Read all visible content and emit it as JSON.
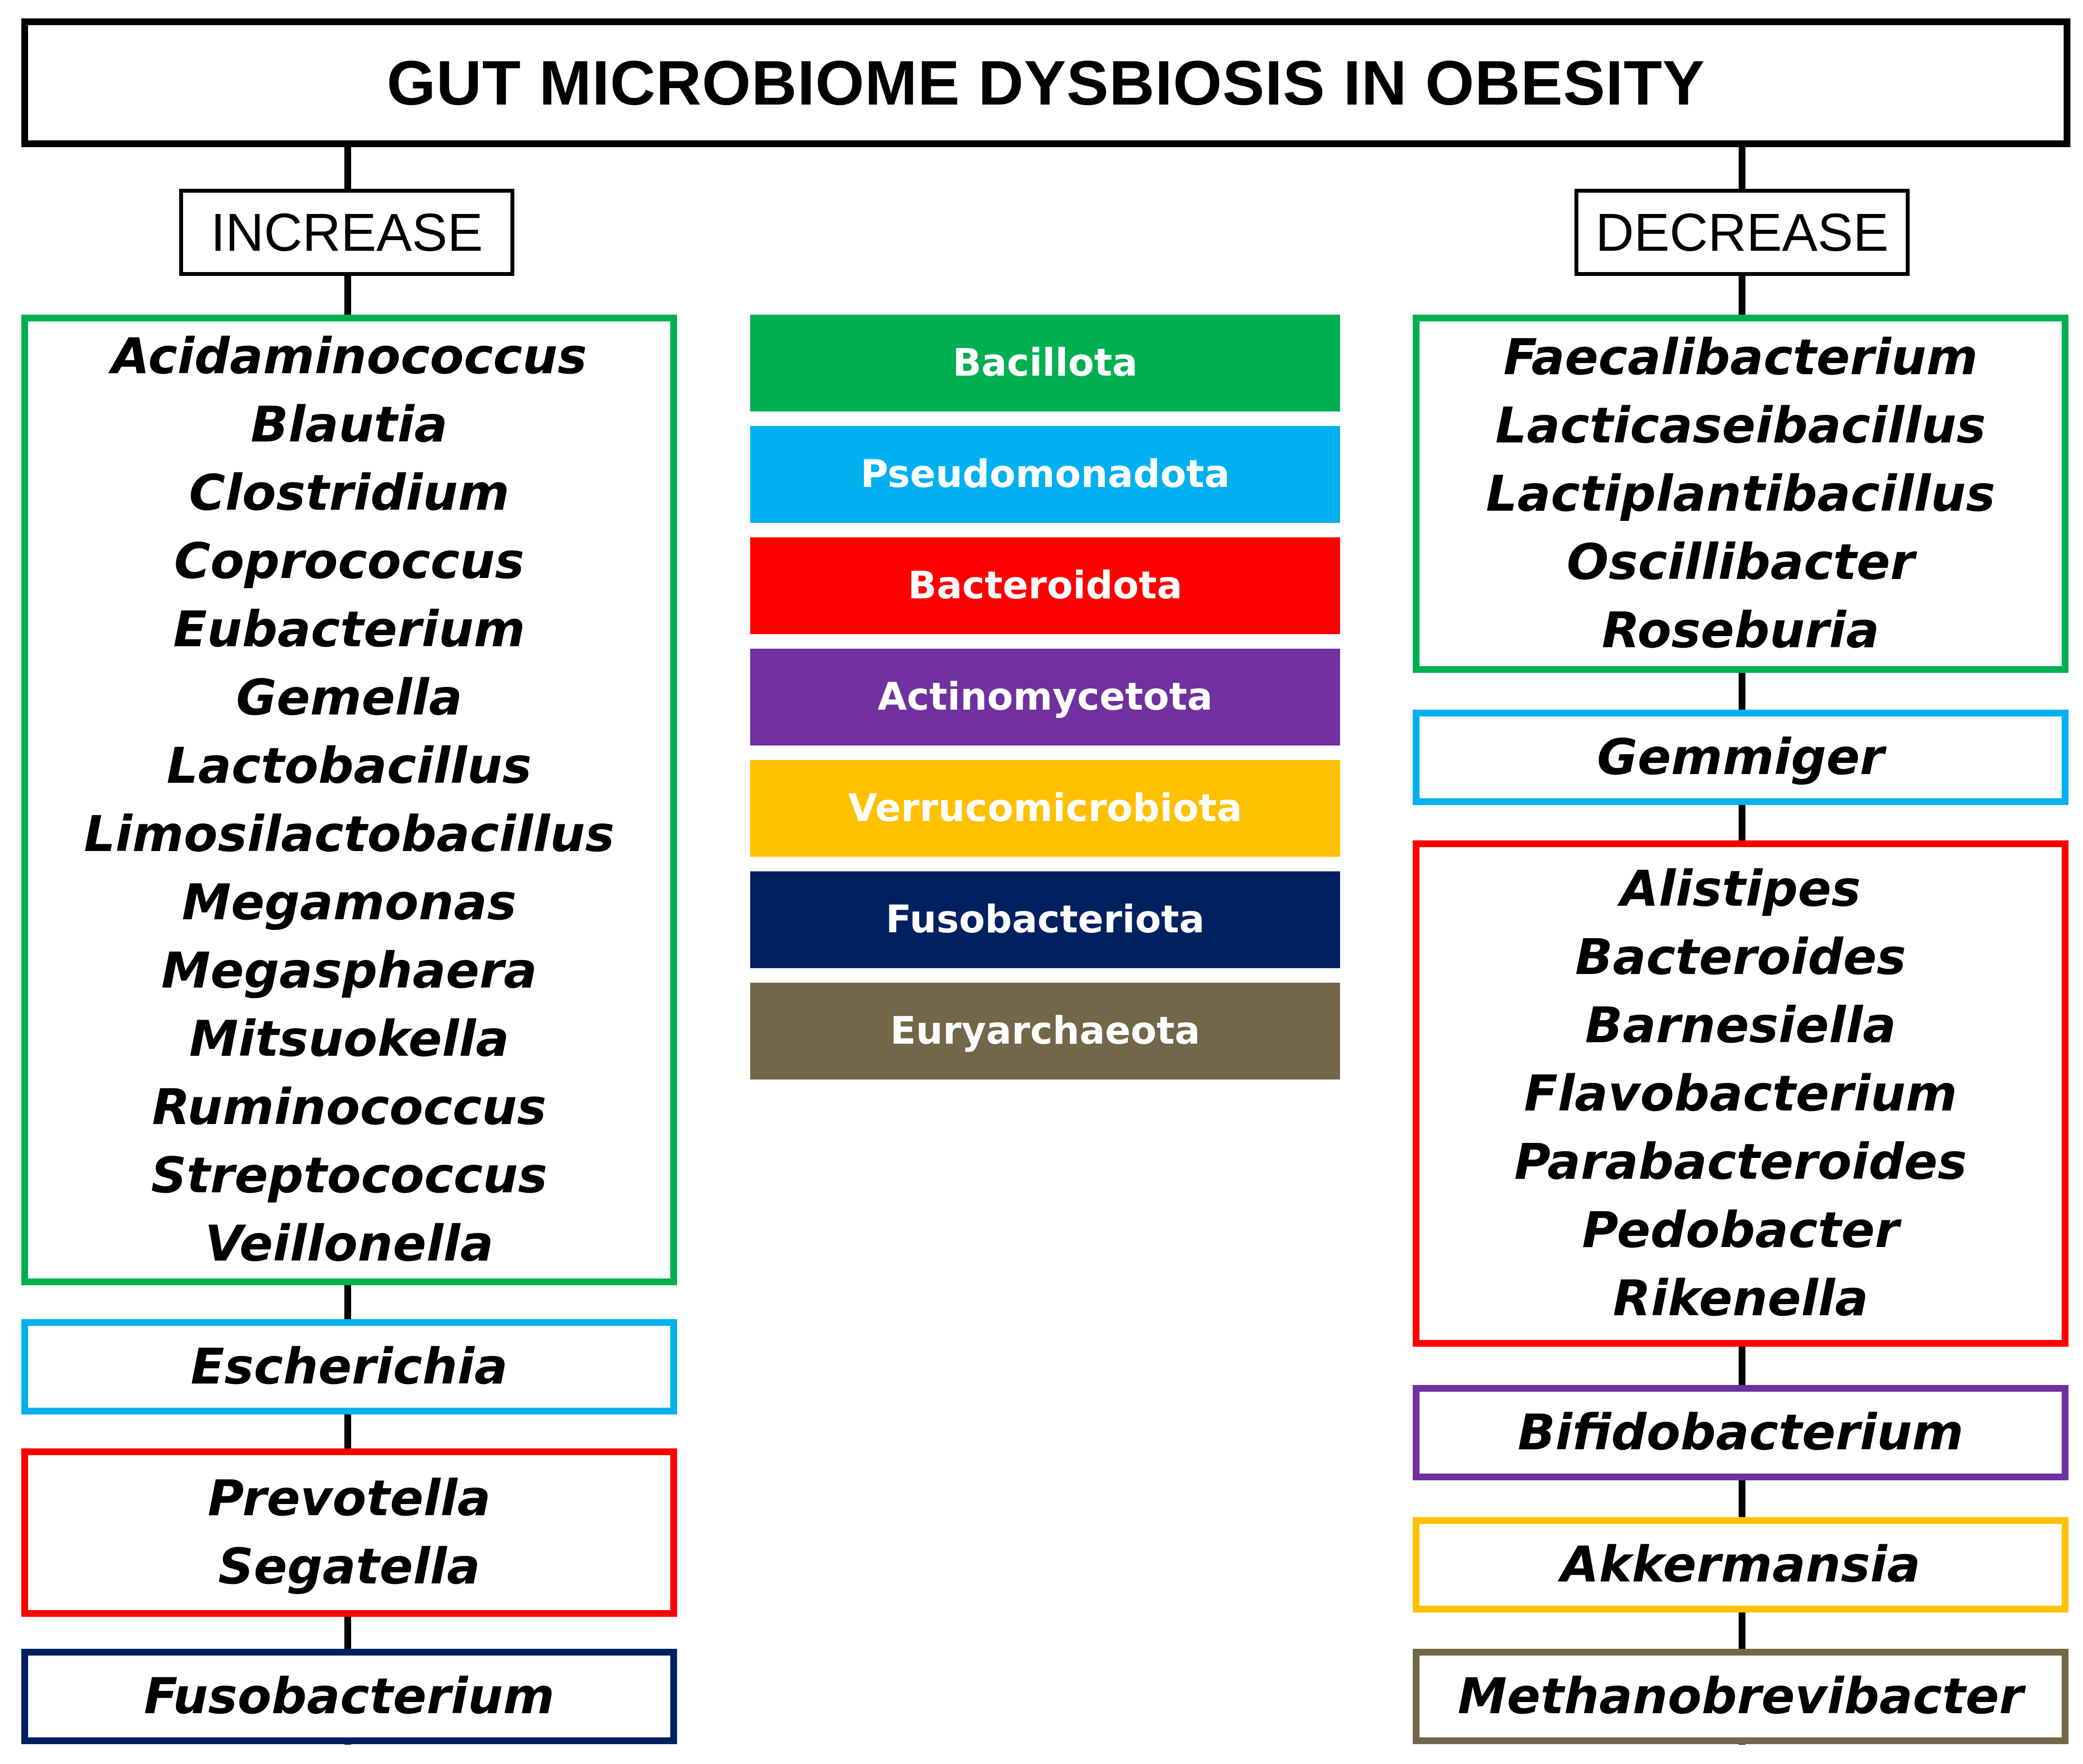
{
  "title": "GUT MICROBIOME DYSBIOSIS IN OBESITY",
  "colors": {
    "Bacillota": "#00b050",
    "Pseudomonadota": "#00b0f0",
    "Bacteroidota": "#ff0000",
    "Actinomycetota": "#7030a0",
    "Verrucomicrobiota": "#ffc000",
    "Fusobacteriota": "#002060",
    "Euryarchaeota": "#736649"
  },
  "increase": {
    "label": "INCREASE",
    "groups": [
      {
        "phylum": "Bacillota",
        "genera": [
          "Acidaminococcus",
          "Blautia",
          "Clostridium",
          "Coprococcus",
          "Eubacterium",
          "Gemella",
          "Lactobacillus",
          "Limosilactobacillus",
          "Megamonas",
          "Megasphaera",
          "Mitsuokella",
          "Ruminococcus",
          "Streptococcus",
          "Veillonella"
        ]
      },
      {
        "phylum": "Pseudomonadota",
        "genera": [
          "Escherichia"
        ]
      },
      {
        "phylum": "Bacteroidota",
        "genera": [
          "Prevotella",
          "Segatella"
        ]
      },
      {
        "phylum": "Fusobacteriota",
        "genera": [
          "Fusobacterium"
        ]
      }
    ]
  },
  "decrease": {
    "label": "DECREASE",
    "groups": [
      {
        "phylum": "Bacillota",
        "genera": [
          "Faecalibacterium",
          "Lacticaseibacillus",
          "Lactiplantibacillus",
          "Oscillibacter",
          "Roseburia"
        ]
      },
      {
        "phylum": "Bacillota_light",
        "genera": [
          "Gemmiger"
        ]
      },
      {
        "phylum": "Bacteroidota",
        "genera": [
          "Alistipes",
          "Bacteroides",
          "Barnesiella",
          "Flavobacterium",
          "Parabacteroides",
          "Pedobacter",
          "Rikenella"
        ]
      },
      {
        "phylum": "Actinomycetota",
        "genera": [
          "Bifidobacterium"
        ]
      },
      {
        "phylum": "Verrucomicrobiota",
        "genera": [
          "Akkermansia"
        ]
      },
      {
        "phylum": "Euryarchaeota",
        "genera": [
          "Methanobrevibacter"
        ]
      }
    ]
  },
  "legend": [
    "Bacillota",
    "Pseudomonadota",
    "Bacteroidota",
    "Actinomycetota",
    "Verrucomicrobiota",
    "Fusobacteriota",
    "Euryarchaeota"
  ]
}
